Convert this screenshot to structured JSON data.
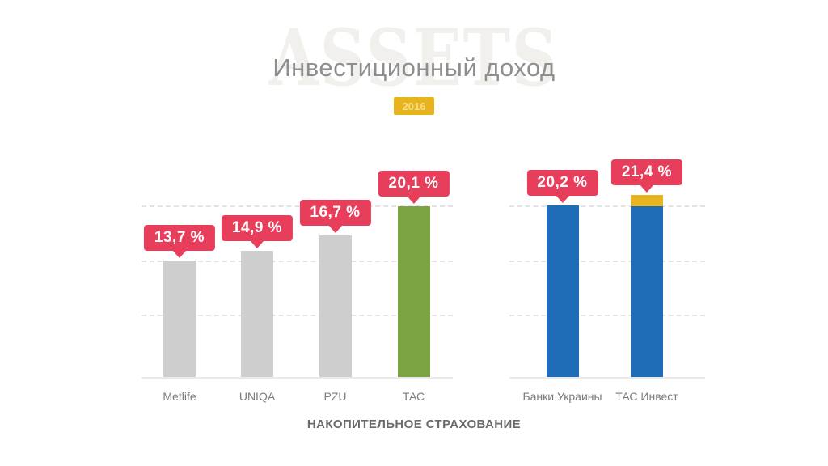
{
  "watermark": "ASSETS",
  "title": "Инвестиционный доход",
  "year_badge": "2016",
  "caption": "НАКОПИТЕЛЬНОЕ СТРАХОВАНИЕ",
  "colors": {
    "callout": "#e73e5b",
    "gray": "#cecece",
    "green": "#7ba33f",
    "blue": "#1e6db6",
    "gold": "#e8b41d",
    "title_text": "#8f8f8f",
    "watermark_text": "#f2f0ec",
    "gridline": "#e3e3e3"
  },
  "chart_data": {
    "type": "bar",
    "title": "Инвестиционный доход",
    "subtitle_year": "2016",
    "unit": "%",
    "ylim": [
      0,
      22.5
    ],
    "grid": "dashed horizontal, no tick labels",
    "legend": "none",
    "caption": "НАКОПИТЕЛЬНОЕ СТРАХОВАНИЕ",
    "groups": [
      {
        "name": "life-insurers",
        "categories": [
          "Metlife",
          "UNIQA",
          "PZU",
          "ТАС"
        ],
        "values": [
          13.7,
          14.9,
          16.7,
          20.1
        ],
        "value_labels": [
          "13,7 %",
          "14,9 %",
          "16,7 %",
          "20,1 %"
        ],
        "bar_colors": [
          "gray",
          "gray",
          "gray",
          "green"
        ],
        "segments": [
          [
            {
              "value": 13.7,
              "color": "gray"
            }
          ],
          [
            {
              "value": 14.9,
              "color": "gray"
            }
          ],
          [
            {
              "value": 16.7,
              "color": "gray"
            }
          ],
          [
            {
              "value": 20.1,
              "color": "green"
            }
          ]
        ]
      },
      {
        "name": "alternatives",
        "categories": [
          "Банки Украины",
          "ТАС Инвест"
        ],
        "values": [
          20.2,
          21.4
        ],
        "value_labels": [
          "20,2 %",
          "21,4 %"
        ],
        "bar_colors": [
          "blue",
          "blue-with-gold-cap"
        ],
        "segments": [
          [
            {
              "value": 20.2,
              "color": "blue"
            }
          ],
          [
            {
              "value": 20.1,
              "color": "blue"
            },
            {
              "value": 1.3,
              "color": "gold"
            }
          ]
        ]
      }
    ]
  }
}
